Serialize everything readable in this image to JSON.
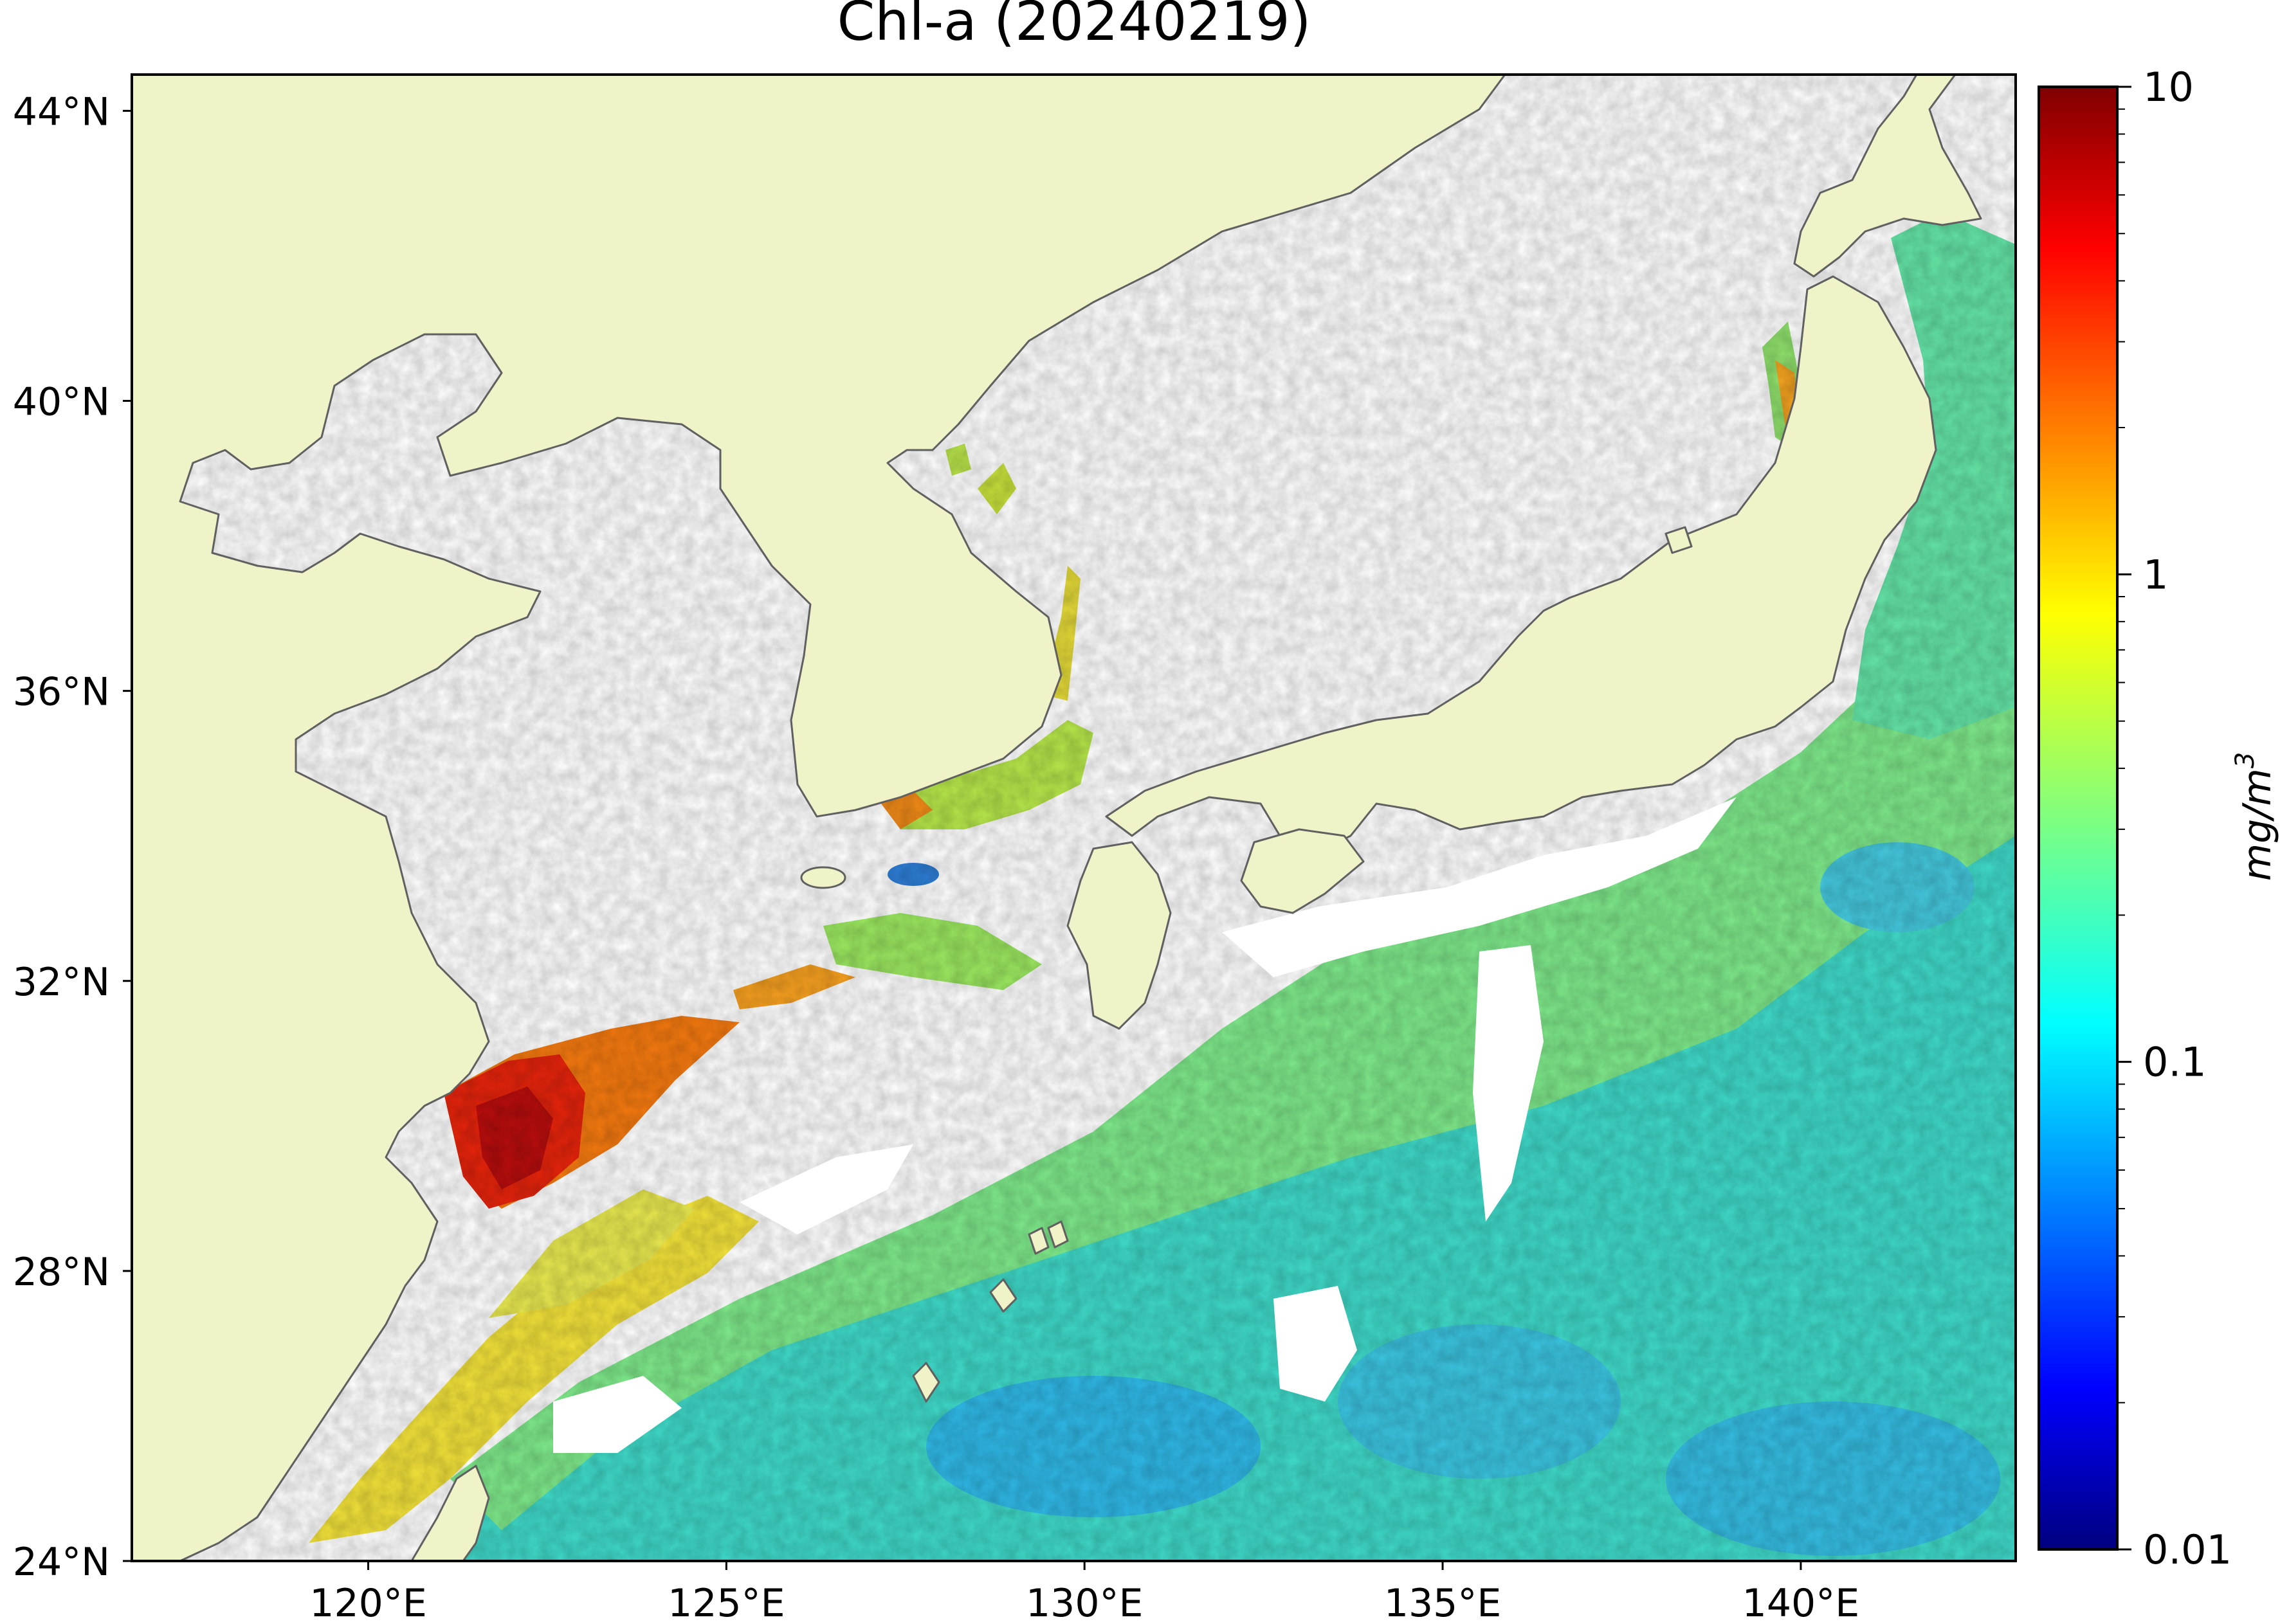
{
  "title": "Chl-a (20240219)",
  "map": {
    "lat_labels": [
      "44°N",
      "40°N",
      "36°N",
      "32°N",
      "28°N",
      "24°N"
    ],
    "lon_labels": [
      "120°E",
      "125°E",
      "130°E",
      "135°E",
      "140°E"
    ],
    "lat_range": [
      24,
      44.5
    ],
    "lon_range": [
      116.7,
      143
    ],
    "land_color": "#f0f2c8",
    "coast_color": "#606060",
    "nodata_color": "#ffffff"
  },
  "colorbar": {
    "label": "mg/m",
    "label_sup": "3",
    "ticks": [
      "10",
      "1",
      "0.1",
      "0.01"
    ],
    "scale": "log",
    "range": [
      0.01,
      10
    ],
    "colormap": "jet",
    "colors": [
      "#00007f",
      "#0000ff",
      "#007fff",
      "#00ffff",
      "#7fff7f",
      "#ffff00",
      "#ff7f00",
      "#ff0000",
      "#7f0000"
    ]
  }
}
